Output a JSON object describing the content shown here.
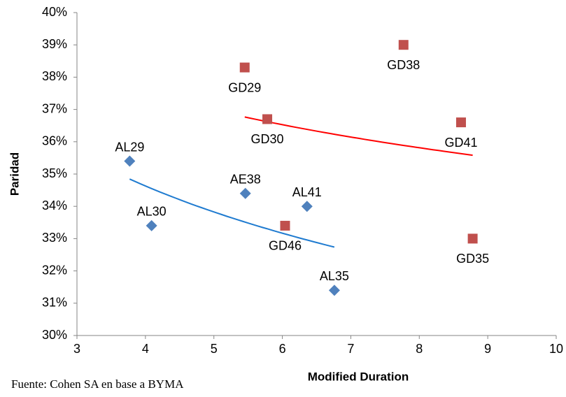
{
  "chart_data": {
    "type": "scatter",
    "x_label": "Modified Duration",
    "y_label": "Paridad",
    "source": "Fuente: Cohen SA en base a BYMA",
    "xlim": [
      3,
      10
    ],
    "xticks": [
      3,
      4,
      5,
      6,
      7,
      8,
      9,
      10
    ],
    "ylim": [
      30,
      40
    ],
    "yticks": [
      {
        "value": 30,
        "label": "30%"
      },
      {
        "value": 31,
        "label": "31%"
      },
      {
        "value": 32,
        "label": "32%"
      },
      {
        "value": 33,
        "label": "33%"
      },
      {
        "value": 34,
        "label": "34%"
      },
      {
        "value": 35,
        "label": "35%"
      },
      {
        "value": 36,
        "label": "36%"
      },
      {
        "value": 37,
        "label": "37%"
      },
      {
        "value": 38,
        "label": "38%"
      },
      {
        "value": 39,
        "label": "39%"
      },
      {
        "value": 40,
        "label": "40%"
      }
    ],
    "grid": false,
    "series": [
      {
        "marker": "diamond",
        "color": "#4f81bd",
        "trendline": "log",
        "trend_color": "#1f7bd0",
        "label_position": "above",
        "labels": [
          "AL29",
          "AL30",
          "AE38",
          "AL41",
          "AL35"
        ],
        "x": [
          3.77,
          4.09,
          5.46,
          6.36,
          6.76
        ],
        "values": [
          35.4,
          33.4,
          34.4,
          34.0,
          31.4
        ]
      },
      {
        "marker": "square",
        "color": "#c0504d",
        "trendline": "log",
        "trend_color": "#ff0000",
        "label_position": "below",
        "labels": [
          "GD29",
          "GD30",
          "GD38",
          "GD41",
          "GD46",
          "GD35"
        ],
        "x": [
          5.45,
          5.78,
          7.77,
          8.61,
          6.04,
          8.78
        ],
        "values": [
          38.3,
          36.7,
          39.0,
          36.6,
          33.4,
          33.0
        ]
      }
    ]
  }
}
